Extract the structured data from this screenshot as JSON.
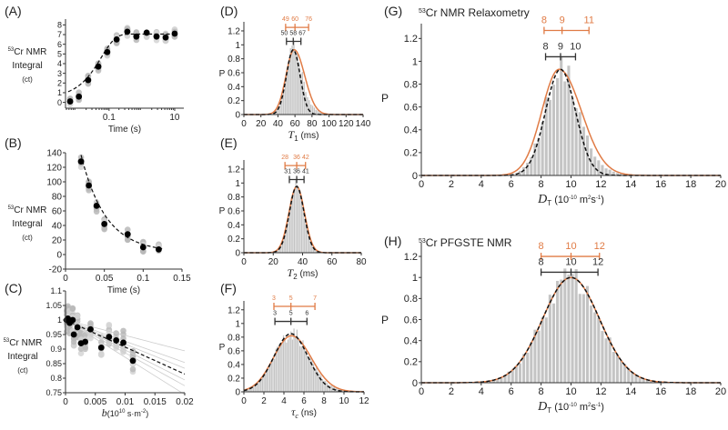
{
  "chart_data": [
    {
      "id": "A",
      "panel_label": "(A)",
      "type": "scatter",
      "xscale": "log",
      "ylabel": [
        "Cr NMR",
        "Integral",
        "(ct)"
      ],
      "ylabel_sup": "53",
      "xlabel": "Time (s)",
      "xlim": [
        0.0047,
        19
      ],
      "ylim": [
        -0.6,
        8.6
      ],
      "xticks": [
        0.1,
        10
      ],
      "xtick_labels": [
        "0.1",
        "10"
      ],
      "yticks": [
        0,
        1,
        2,
        3,
        4,
        5,
        6,
        7,
        8
      ],
      "ytick_labels": [
        "0",
        "1",
        "2",
        "3",
        "4",
        "5",
        "6",
        "7",
        "8"
      ],
      "x": [
        0.0065,
        0.012,
        0.023,
        0.047,
        0.088,
        0.17,
        0.36,
        0.68,
        1.4,
        2.8,
        5.3,
        10
      ],
      "y": [
        0.1,
        0.6,
        2.3,
        3.7,
        5.2,
        6.5,
        7.3,
        6.8,
        7.2,
        6.8,
        6.7,
        7.1
      ],
      "fit": {
        "model": "saturation-recovery",
        "plateau": 7.05,
        "T1": 0.058,
        "offset": 0.5
      }
    },
    {
      "id": "B",
      "panel_label": "(B)",
      "type": "scatter",
      "ylabel": [
        "Cr NMR",
        "Integral",
        "(ct)"
      ],
      "ylabel_sup": "53",
      "xlabel": "Time (s)",
      "xlim": [
        0,
        0.15
      ],
      "ylim": [
        -20,
        140
      ],
      "xticks": [
        0,
        0.05,
        0.1,
        0.15
      ],
      "xtick_labels": [
        "0",
        "0.05",
        "0.1",
        "0.15"
      ],
      "yticks": [
        -20,
        0,
        20,
        40,
        60,
        80,
        100,
        120,
        140
      ],
      "ytick_labels": [
        "-20",
        "0",
        "20",
        "40",
        "60",
        "80",
        "100",
        "120",
        "140"
      ],
      "x": [
        0.02,
        0.03,
        0.04,
        0.05,
        0.08,
        0.1,
        0.12
      ],
      "y": [
        128,
        95,
        67,
        42,
        28,
        10,
        7
      ],
      "fit": {
        "model": "exponential-decay",
        "A0": 250,
        "T2": 0.032,
        "offset": 3
      }
    },
    {
      "id": "C",
      "panel_label": "(C)",
      "type": "scatter",
      "ylabel": [
        "Cr NMR",
        "Integral",
        "(ct)"
      ],
      "ylabel_sup": "53",
      "xlabel_var": "b",
      "xlabel_unit": "(10",
      "xlabel_unit_sup": "10",
      "xlabel_unit_tail": " s·m",
      "xlabel_unit_sup2": "-2",
      "xlabel_close": ")",
      "xlim": [
        0,
        0.02
      ],
      "ylim": [
        0.75,
        1.1
      ],
      "xticks": [
        0,
        0.005,
        0.01,
        0.015,
        0.02
      ],
      "xtick_labels": [
        "0",
        "0.005",
        "0.01",
        "0.015",
        "0.02"
      ],
      "yticks": [
        0.75,
        0.8,
        0.85,
        0.9,
        0.95,
        1,
        1.05,
        1.1
      ],
      "ytick_labels": [
        "0.75",
        "0.8",
        "0.85",
        "0.9",
        "0.95",
        "1",
        "1.05",
        "1.1"
      ],
      "x": [
        0.0002,
        0.0004,
        0.0007,
        0.0012,
        0.0014,
        0.002,
        0.0026,
        0.0033,
        0.0042,
        0.006,
        0.0073,
        0.0085,
        0.0097,
        0.0113
      ],
      "y": [
        1.0,
        1.005,
        0.99,
        1.0,
        0.95,
        0.975,
        0.92,
        0.925,
        0.968,
        0.905,
        0.942,
        0.93,
        0.922,
        0.86
      ],
      "fit": {
        "model": "linear",
        "intercept": 1.0,
        "slope": -9.3
      }
    },
    {
      "id": "D",
      "panel_label": "(D)",
      "type": "bar",
      "ylabel": "P",
      "xlabel_var": "T",
      "xlabel_sub": "1",
      "xlabel_unit": " (ms)",
      "xlim": [
        0,
        140
      ],
      "ylim": [
        0,
        1.33
      ],
      "xticks": [
        0,
        20,
        40,
        60,
        80,
        100,
        120,
        140
      ],
      "xtick_labels": [
        "0",
        "20",
        "40",
        "60",
        "80",
        "100",
        "120",
        "140"
      ],
      "yticks": [
        0,
        0.2,
        0.4,
        0.6,
        0.8,
        1,
        1.2
      ],
      "ytick_labels": [
        "0",
        "0.2",
        "0.4",
        "0.6",
        "0.8",
        "1",
        "1.2"
      ],
      "hist": {
        "bin": 2,
        "mean": 59,
        "sd": 9,
        "amp": 0.95,
        "tail": 0.08
      },
      "fit_black": {
        "mean": 58,
        "sd": 8,
        "amp": 0.93
      },
      "fit_orange": {
        "mean": 59,
        "sd": 9.5,
        "amp": 0.93,
        "skew": 0.3
      },
      "bar_orange": {
        "values": [
          49,
          60,
          76
        ],
        "labels": [
          "49",
          "60",
          "76"
        ]
      },
      "bar_black": {
        "values": [
          50,
          58,
          67
        ],
        "labels": [
          "50",
          "58",
          "67"
        ]
      }
    },
    {
      "id": "E",
      "panel_label": "(E)",
      "type": "bar",
      "ylabel": "P",
      "xlabel_var": "T",
      "xlabel_sub": "2",
      "xlabel_unit": " (ms)",
      "xlim": [
        0,
        80
      ],
      "ylim": [
        0,
        1.33
      ],
      "xticks": [
        0,
        20,
        40,
        60,
        80
      ],
      "xtick_labels": [
        "0",
        "20",
        "40",
        "60",
        "80"
      ],
      "yticks": [
        0,
        0.2,
        0.4,
        0.6,
        0.8,
        1,
        1.2
      ],
      "ytick_labels": [
        "0",
        "0.2",
        "0.4",
        "0.6",
        "0.8",
        "1",
        "1.2"
      ],
      "hist": {
        "bin": 1,
        "mean": 36,
        "sd": 5,
        "amp": 0.95,
        "tail": 0.02
      },
      "fit_black": {
        "mean": 36,
        "sd": 5,
        "amp": 0.95
      },
      "fit_orange": {
        "mean": 36,
        "sd": 5.3,
        "amp": 0.95,
        "skew": 0
      },
      "bar_orange": {
        "values": [
          28,
          36,
          42
        ],
        "labels": [
          "28",
          "36",
          "42"
        ]
      },
      "bar_black": {
        "values": [
          31,
          36,
          41
        ],
        "labels": [
          "31",
          "36",
          "41"
        ]
      }
    },
    {
      "id": "F",
      "panel_label": "(F)",
      "type": "bar",
      "ylabel": "P",
      "xlabel_var": "τ",
      "xlabel_sub": "c",
      "xlabel_unit": " (ns)",
      "xlim": [
        0,
        12
      ],
      "ylim": [
        0,
        1.33
      ],
      "xticks": [
        0,
        2,
        4,
        6,
        8,
        10,
        12
      ],
      "xtick_labels": [
        "0",
        "2",
        "4",
        "6",
        "8",
        "10",
        "12"
      ],
      "yticks": [
        0,
        0.2,
        0.4,
        0.6,
        0.8,
        1,
        1.2
      ],
      "ytick_labels": [
        "0",
        "0.2",
        "0.4",
        "0.6",
        "0.8",
        "1",
        "1.2"
      ],
      "hist": {
        "bin": 0.15,
        "mean": 4.8,
        "sd": 1.75,
        "amp": 0.85,
        "tail": 0.02
      },
      "fit_black": {
        "mean": 4.7,
        "sd": 1.7,
        "amp": 0.85
      },
      "fit_orange": {
        "mean": 4.75,
        "sd": 1.8,
        "amp": 0.82,
        "skew": 0.1
      },
      "bar_orange": {
        "values": [
          3,
          4.7,
          7.1
        ],
        "labels": [
          "3",
          "5",
          "7"
        ]
      },
      "bar_black": {
        "values": [
          3.1,
          4.7,
          6.3
        ],
        "labels": [
          "3",
          "5",
          "6"
        ]
      }
    },
    {
      "id": "G",
      "panel_label": "(G)",
      "type": "bar",
      "ylabel": "P",
      "title_sup": "53",
      "title": "Cr NMR Relaxometry",
      "xlabel_var": "D",
      "xlabel_sub": "T",
      "xlabel_unit": " (10",
      "xlabel_unit_sup": "-10",
      "xlabel_unit_tail": " m",
      "xlabel_unit_sup2": "2",
      "xlabel_close": "s",
      "xlabel_close_sup": "-1",
      "xlabel_end": ")",
      "xlim": [
        0,
        20
      ],
      "ylim": [
        0,
        1.33
      ],
      "xticks": [
        0,
        2,
        4,
        6,
        8,
        10,
        12,
        14,
        16,
        18,
        20
      ],
      "xtick_labels": [
        "0",
        "2",
        "4",
        "6",
        "8",
        "10",
        "12",
        "14",
        "16",
        "18",
        "20"
      ],
      "yticks": [
        0,
        0.2,
        0.4,
        0.6,
        0.8,
        1,
        1.2
      ],
      "ytick_labels": [
        "0",
        "0.2",
        "0.4",
        "0.6",
        "0.8",
        "1",
        "1.2"
      ],
      "hist": {
        "bin": 0.25,
        "mean": 9.4,
        "sd": 1.1,
        "amp": 0.95,
        "tail": 0.05
      },
      "fit_black": {
        "mean": 9.3,
        "sd": 1.0,
        "amp": 0.93
      },
      "fit_orange": {
        "mean": 9.2,
        "sd": 1.15,
        "amp": 0.93,
        "skew": 0.3
      },
      "bar_orange": {
        "values": [
          8.2,
          9.4,
          11.2
        ],
        "labels": [
          "8",
          "9",
          "11"
        ]
      },
      "bar_black": {
        "values": [
          8.3,
          9.3,
          10.3
        ],
        "labels": [
          "8",
          "9",
          "10"
        ]
      }
    },
    {
      "id": "H",
      "panel_label": "(H)",
      "type": "bar",
      "ylabel": "P",
      "title_sup": "53",
      "title": "Cr PFGSTE NMR",
      "xlabel_var": "D",
      "xlabel_sub": "T",
      "xlabel_unit": " (10",
      "xlabel_unit_sup": "-10",
      "xlabel_unit_tail": " m",
      "xlabel_unit_sup2": "2",
      "xlabel_close": "s",
      "xlabel_close_sup": "-1",
      "xlabel_end": ")",
      "xlim": [
        0,
        20
      ],
      "ylim": [
        0,
        1.33
      ],
      "xticks": [
        0,
        2,
        4,
        6,
        8,
        10,
        12,
        14,
        16,
        18,
        20
      ],
      "xtick_labels": [
        "0",
        "2",
        "4",
        "6",
        "8",
        "10",
        "12",
        "14",
        "16",
        "18",
        "20"
      ],
      "yticks": [
        0,
        0.2,
        0.4,
        0.6,
        0.8,
        1,
        1.2
      ],
      "ytick_labels": [
        "0",
        "0.2",
        "0.4",
        "0.6",
        "0.8",
        "1",
        "1.2"
      ],
      "hist": {
        "bin": 0.25,
        "mean": 10,
        "sd": 1.9,
        "amp": 1.0,
        "tail": 0
      },
      "fit_black": {
        "mean": 10,
        "sd": 1.9,
        "amp": 1.0
      },
      "fit_orange": {
        "mean": 10,
        "sd": 1.9,
        "amp": 1.0,
        "skew": 0
      },
      "bar_orange": {
        "values": [
          8,
          10,
          11.9
        ],
        "labels": [
          "8",
          "10",
          "12"
        ]
      },
      "bar_black": {
        "values": [
          8,
          10,
          11.8
        ],
        "labels": [
          "8",
          "10",
          "12"
        ]
      }
    }
  ],
  "colors": {
    "orange": "#e07b45",
    "black": "#111111",
    "bar": "#c4c4c4",
    "scatter_gray": "#9a9a9a"
  }
}
